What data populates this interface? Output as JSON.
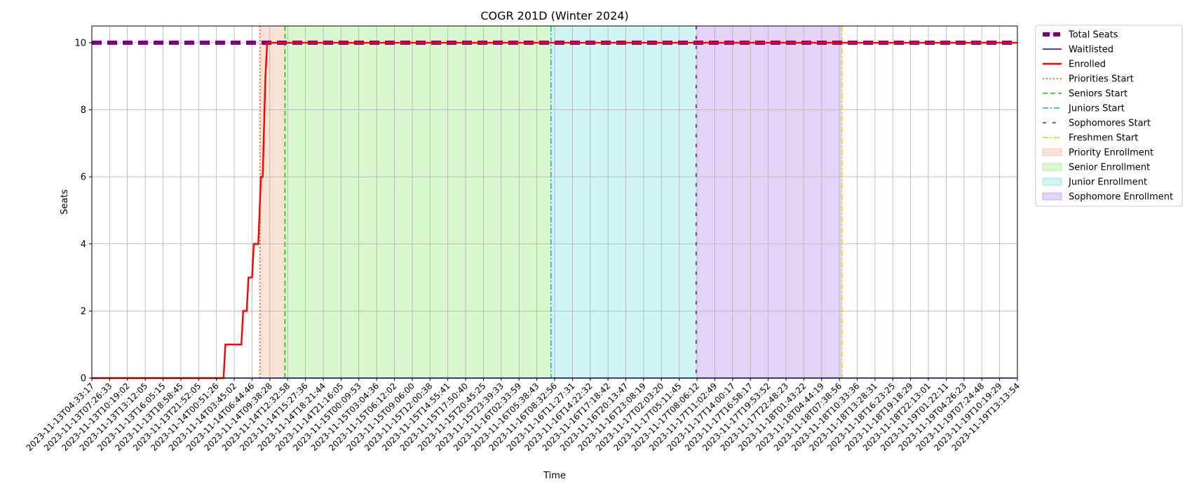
{
  "chart_data": {
    "type": "line",
    "title": "COGR 201D (Winter 2024)",
    "xlabel": "Time",
    "ylabel": "Seats",
    "ylim": [
      0,
      10.5
    ],
    "yticks": [
      0,
      2,
      4,
      6,
      8,
      10
    ],
    "grid": true,
    "legend_position": "outside-top-right",
    "x_tick_labels": [
      "2023-11-13T04:33:17",
      "2023-11-13T07:26:33",
      "2023-11-13T10:19:02",
      "2023-11-13T13:12:05",
      "2023-11-13T16:05:15",
      "2023-11-13T18:58:45",
      "2023-11-13T21:52:05",
      "2023-11-14T00:51:26",
      "2023-11-14T03:45:02",
      "2023-11-14T06:44:46",
      "2023-11-14T09:38:28",
      "2023-11-14T12:32:58",
      "2023-11-14T15:27:36",
      "2023-11-14T18:21:44",
      "2023-11-14T21:16:05",
      "2023-11-15T00:09:53",
      "2023-11-15T03:04:36",
      "2023-11-15T06:12:02",
      "2023-11-15T09:06:00",
      "2023-11-15T12:00:38",
      "2023-11-15T14:55:41",
      "2023-11-15T17:50:40",
      "2023-11-15T20:45:25",
      "2023-11-15T23:39:33",
      "2023-11-16T02:33:59",
      "2023-11-16T05:38:43",
      "2023-11-16T08:32:56",
      "2023-11-16T11:27:31",
      "2023-11-16T14:22:32",
      "2023-11-16T17:18:42",
      "2023-11-16T20:13:47",
      "2023-11-16T23:08:19",
      "2023-11-17T02:03:20",
      "2023-11-17T05:11:45",
      "2023-11-17T08:06:12",
      "2023-11-17T11:02:49",
      "2023-11-17T14:00:17",
      "2023-11-17T16:58:17",
      "2023-11-17T19:53:52",
      "2023-11-17T22:48:23",
      "2023-11-18T01:43:22",
      "2023-11-18T04:44:19",
      "2023-11-18T07:38:56",
      "2023-11-18T10:33:36",
      "2023-11-18T13:28:31",
      "2023-11-18T16:23:25",
      "2023-11-18T19:18:29",
      "2023-11-18T22:13:01",
      "2023-11-19T01:22:11",
      "2023-11-19T04:26:23",
      "2023-11-19T07:24:48",
      "2023-11-19T10:19:29",
      "2023-11-19T13:13:54"
    ],
    "x_range_ticks": [
      0,
      52
    ],
    "series": [
      {
        "name": "Total Seats",
        "color": "#800080",
        "style": "dashed-thick",
        "points": [
          [
            0,
            10
          ],
          [
            52,
            10
          ]
        ]
      },
      {
        "name": "Waitlisted",
        "color": "#0000ff",
        "style": "solid",
        "points": [
          [
            0,
            0
          ],
          [
            52,
            0
          ]
        ]
      },
      {
        "name": "Enrolled",
        "color": "#ff0000",
        "style": "solid-thick",
        "points": [
          [
            0,
            0
          ],
          [
            7.4,
            0
          ],
          [
            7.5,
            1
          ],
          [
            8.4,
            1
          ],
          [
            8.5,
            2
          ],
          [
            8.7,
            2
          ],
          [
            8.8,
            3
          ],
          [
            9.0,
            3
          ],
          [
            9.1,
            4
          ],
          [
            9.35,
            4
          ],
          [
            9.5,
            6
          ],
          [
            9.6,
            6
          ],
          [
            9.75,
            9
          ],
          [
            9.85,
            10
          ],
          [
            52,
            10
          ]
        ]
      }
    ],
    "vlines": [
      {
        "name": "Priorities Start",
        "x": 9.45,
        "color": "#ff4500",
        "style": "dotted"
      },
      {
        "name": "Seniors Start",
        "x": 10.85,
        "color": "#22bb00",
        "style": "dashed"
      },
      {
        "name": "Juniors Start",
        "x": 25.8,
        "color": "#00bbbb",
        "style": "dashdot"
      },
      {
        "name": "Sophomores Start",
        "x": 33.95,
        "color": "#6a0dad",
        "style": "loosedash"
      },
      {
        "name": "Freshmen Start",
        "x": 42.15,
        "color": "#e0d000",
        "style": "dashdot"
      }
    ],
    "spans": [
      {
        "name": "Priority Enrollment",
        "x0": 9.45,
        "x1": 10.85,
        "color": "#f4c8b0"
      },
      {
        "name": "Senior Enrollment",
        "x0": 10.85,
        "x1": 25.8,
        "color": "#b4efa0"
      },
      {
        "name": "Junior Enrollment",
        "x0": 25.8,
        "x1": 33.95,
        "color": "#a4eaec"
      },
      {
        "name": "Sophomore Enrollment",
        "x0": 33.95,
        "x1": 42.15,
        "color": "#c8aaf0"
      }
    ]
  }
}
